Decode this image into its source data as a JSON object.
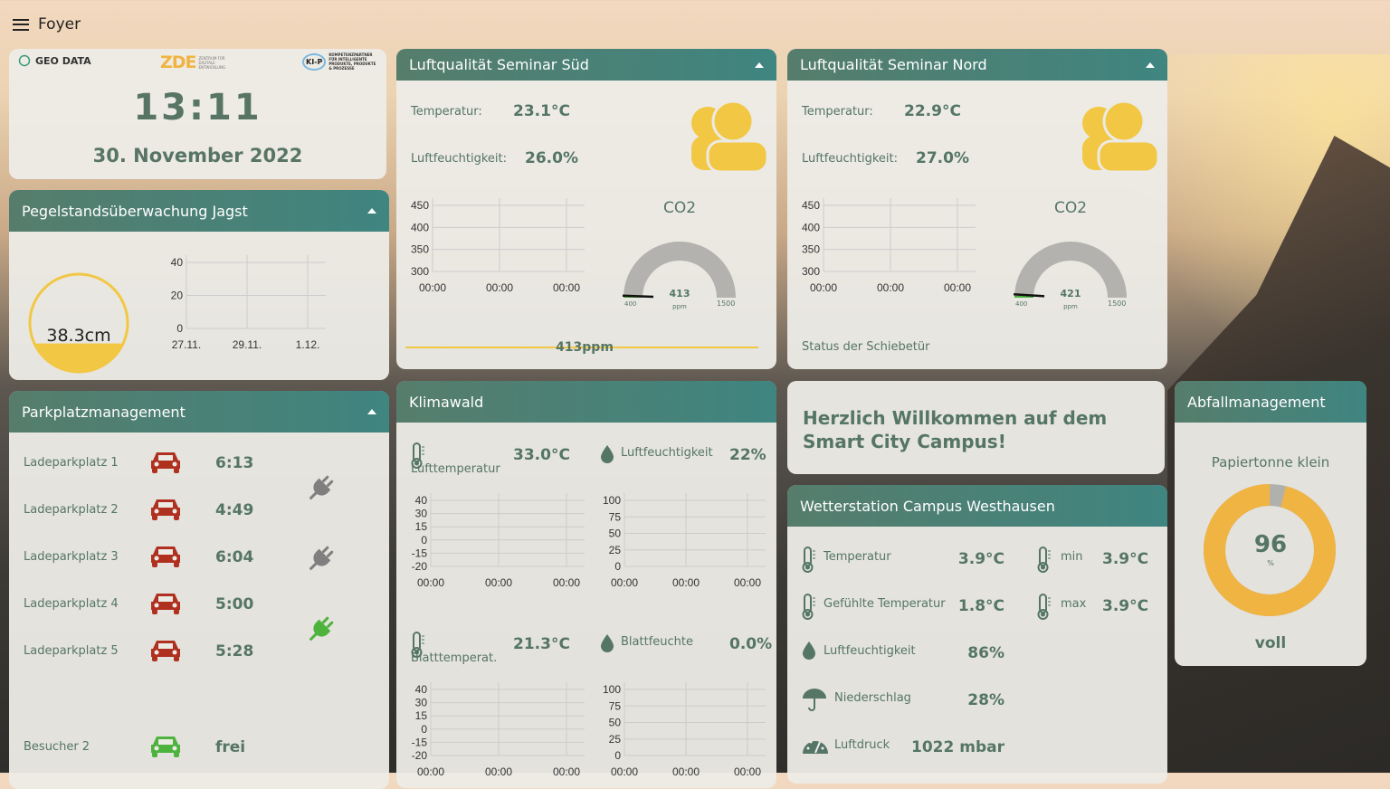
{
  "topbar": {
    "title": "Foyer"
  },
  "clock": {
    "logos": [
      "GEO DATA",
      "ZDE",
      "ZENTRUM FÜR DIGITALE ENTWICKLUNG",
      "KI-P",
      "KOMPETENZPARTNER FÜR INTELLIGENTE PRODUKTE, PRODUKTE & PROZESSE"
    ],
    "time": "13:11",
    "date": "30. November 2022"
  },
  "pegel": {
    "title": "Pegelstandsüberwachung Jagst",
    "value": "38.3cm",
    "fill": 0.3,
    "chart": {
      "yticks": [
        "40",
        "20",
        "0"
      ],
      "xticks": [
        "27.11.",
        "29.11.",
        "1.12."
      ]
    }
  },
  "park": {
    "title": "Parkplatzmanagement",
    "rows": [
      {
        "label": "Ladeparkplatz 1",
        "time": "6:13",
        "car": "red"
      },
      {
        "label": "Ladeparkplatz 2",
        "time": "4:49",
        "car": "red"
      },
      {
        "label": "Ladeparkplatz 3",
        "time": "6:04",
        "car": "red"
      },
      {
        "label": "Ladeparkplatz 4",
        "time": "5:00",
        "car": "red"
      },
      {
        "label": "Ladeparkplatz 5",
        "time": "5:28",
        "car": "red"
      }
    ],
    "plugs": [
      "gray",
      "gray",
      "green"
    ],
    "visitor": {
      "label": "Besucher 2",
      "status": "frei",
      "car": "green"
    }
  },
  "sued": {
    "title": "Luftqualität Seminar Süd",
    "temp_label": "Temperatur:",
    "temp": "23.1°C",
    "hum_label": "Luftfeuchtigkeit:",
    "hum": "26.0%",
    "co2_title": "CO2",
    "co2": "413",
    "unit": "ppm",
    "min": "400",
    "max": "1500",
    "co2_value": 413,
    "bar_label": "413ppm",
    "chart": {
      "yticks": [
        "450",
        "400",
        "350",
        "300"
      ],
      "xticks": [
        "00:00",
        "00:00",
        "00:00"
      ]
    }
  },
  "nord": {
    "title": "Luftqualität Seminar Nord",
    "temp_label": "Temperatur:",
    "temp": "22.9°C",
    "hum_label": "Luftfeuchtigkeit:",
    "hum": "27.0%",
    "co2_title": "CO2",
    "co2": "421",
    "unit": "ppm",
    "min": "400",
    "max": "1500",
    "co2_value": 421,
    "status": "Status der Schiebetür",
    "chart": {
      "yticks": [
        "450",
        "400",
        "350",
        "300"
      ],
      "xticks": [
        "00:00",
        "00:00",
        "00:00"
      ]
    }
  },
  "klima": {
    "title": "Klimawald",
    "air_label": "Lufttemperatur",
    "air": "33.0°C",
    "hum_label": "Luftfeuchtigkeit",
    "hum": "22%",
    "leaf_label": "Blatttemperat.",
    "leaf": "21.3°C",
    "wet_label": "Blattfeuchte",
    "wet": "0.0%",
    "tchart": {
      "yticks": [
        "40",
        "30",
        "15",
        "0",
        "-15",
        "-20"
      ],
      "xticks": [
        "00:00",
        "00:00",
        "00:00"
      ]
    },
    "hchart": {
      "yticks": [
        "100",
        "75",
        "50",
        "25",
        "0"
      ],
      "xticks": [
        "00:00",
        "00:00",
        "00:00"
      ]
    }
  },
  "welcome": {
    "text": "Herzlich Willkommen auf dem Smart City Campus!"
  },
  "wetter": {
    "title": "Wetterstation Campus Westhausen",
    "rows": [
      {
        "label": "Temperatur",
        "value": "3.9°C",
        "icon": "thermometer"
      },
      {
        "label": "Gefühlte Temperatur",
        "value": "1.8°C",
        "icon": "thermometer"
      },
      {
        "label": "Luftfeuchtigkeit",
        "value": "86%",
        "icon": "drop"
      },
      {
        "label": "Niederschlag",
        "value": "28%",
        "icon": "umbrella"
      },
      {
        "label": "Luftdruck",
        "value": "1022 mbar",
        "icon": "gauge"
      }
    ],
    "min_label": "min",
    "min": "3.9°C",
    "max_label": "max",
    "max": "3.9°C"
  },
  "abfall": {
    "title": "Abfallmanagement",
    "bin": "Papiertonne klein",
    "value": "96",
    "percent": 96,
    "unit": "%",
    "status": "voll"
  },
  "colors": {
    "accent": "#567d6c",
    "yellow": "#f0b443",
    "red": "#b03020",
    "green": "#4db33d"
  }
}
